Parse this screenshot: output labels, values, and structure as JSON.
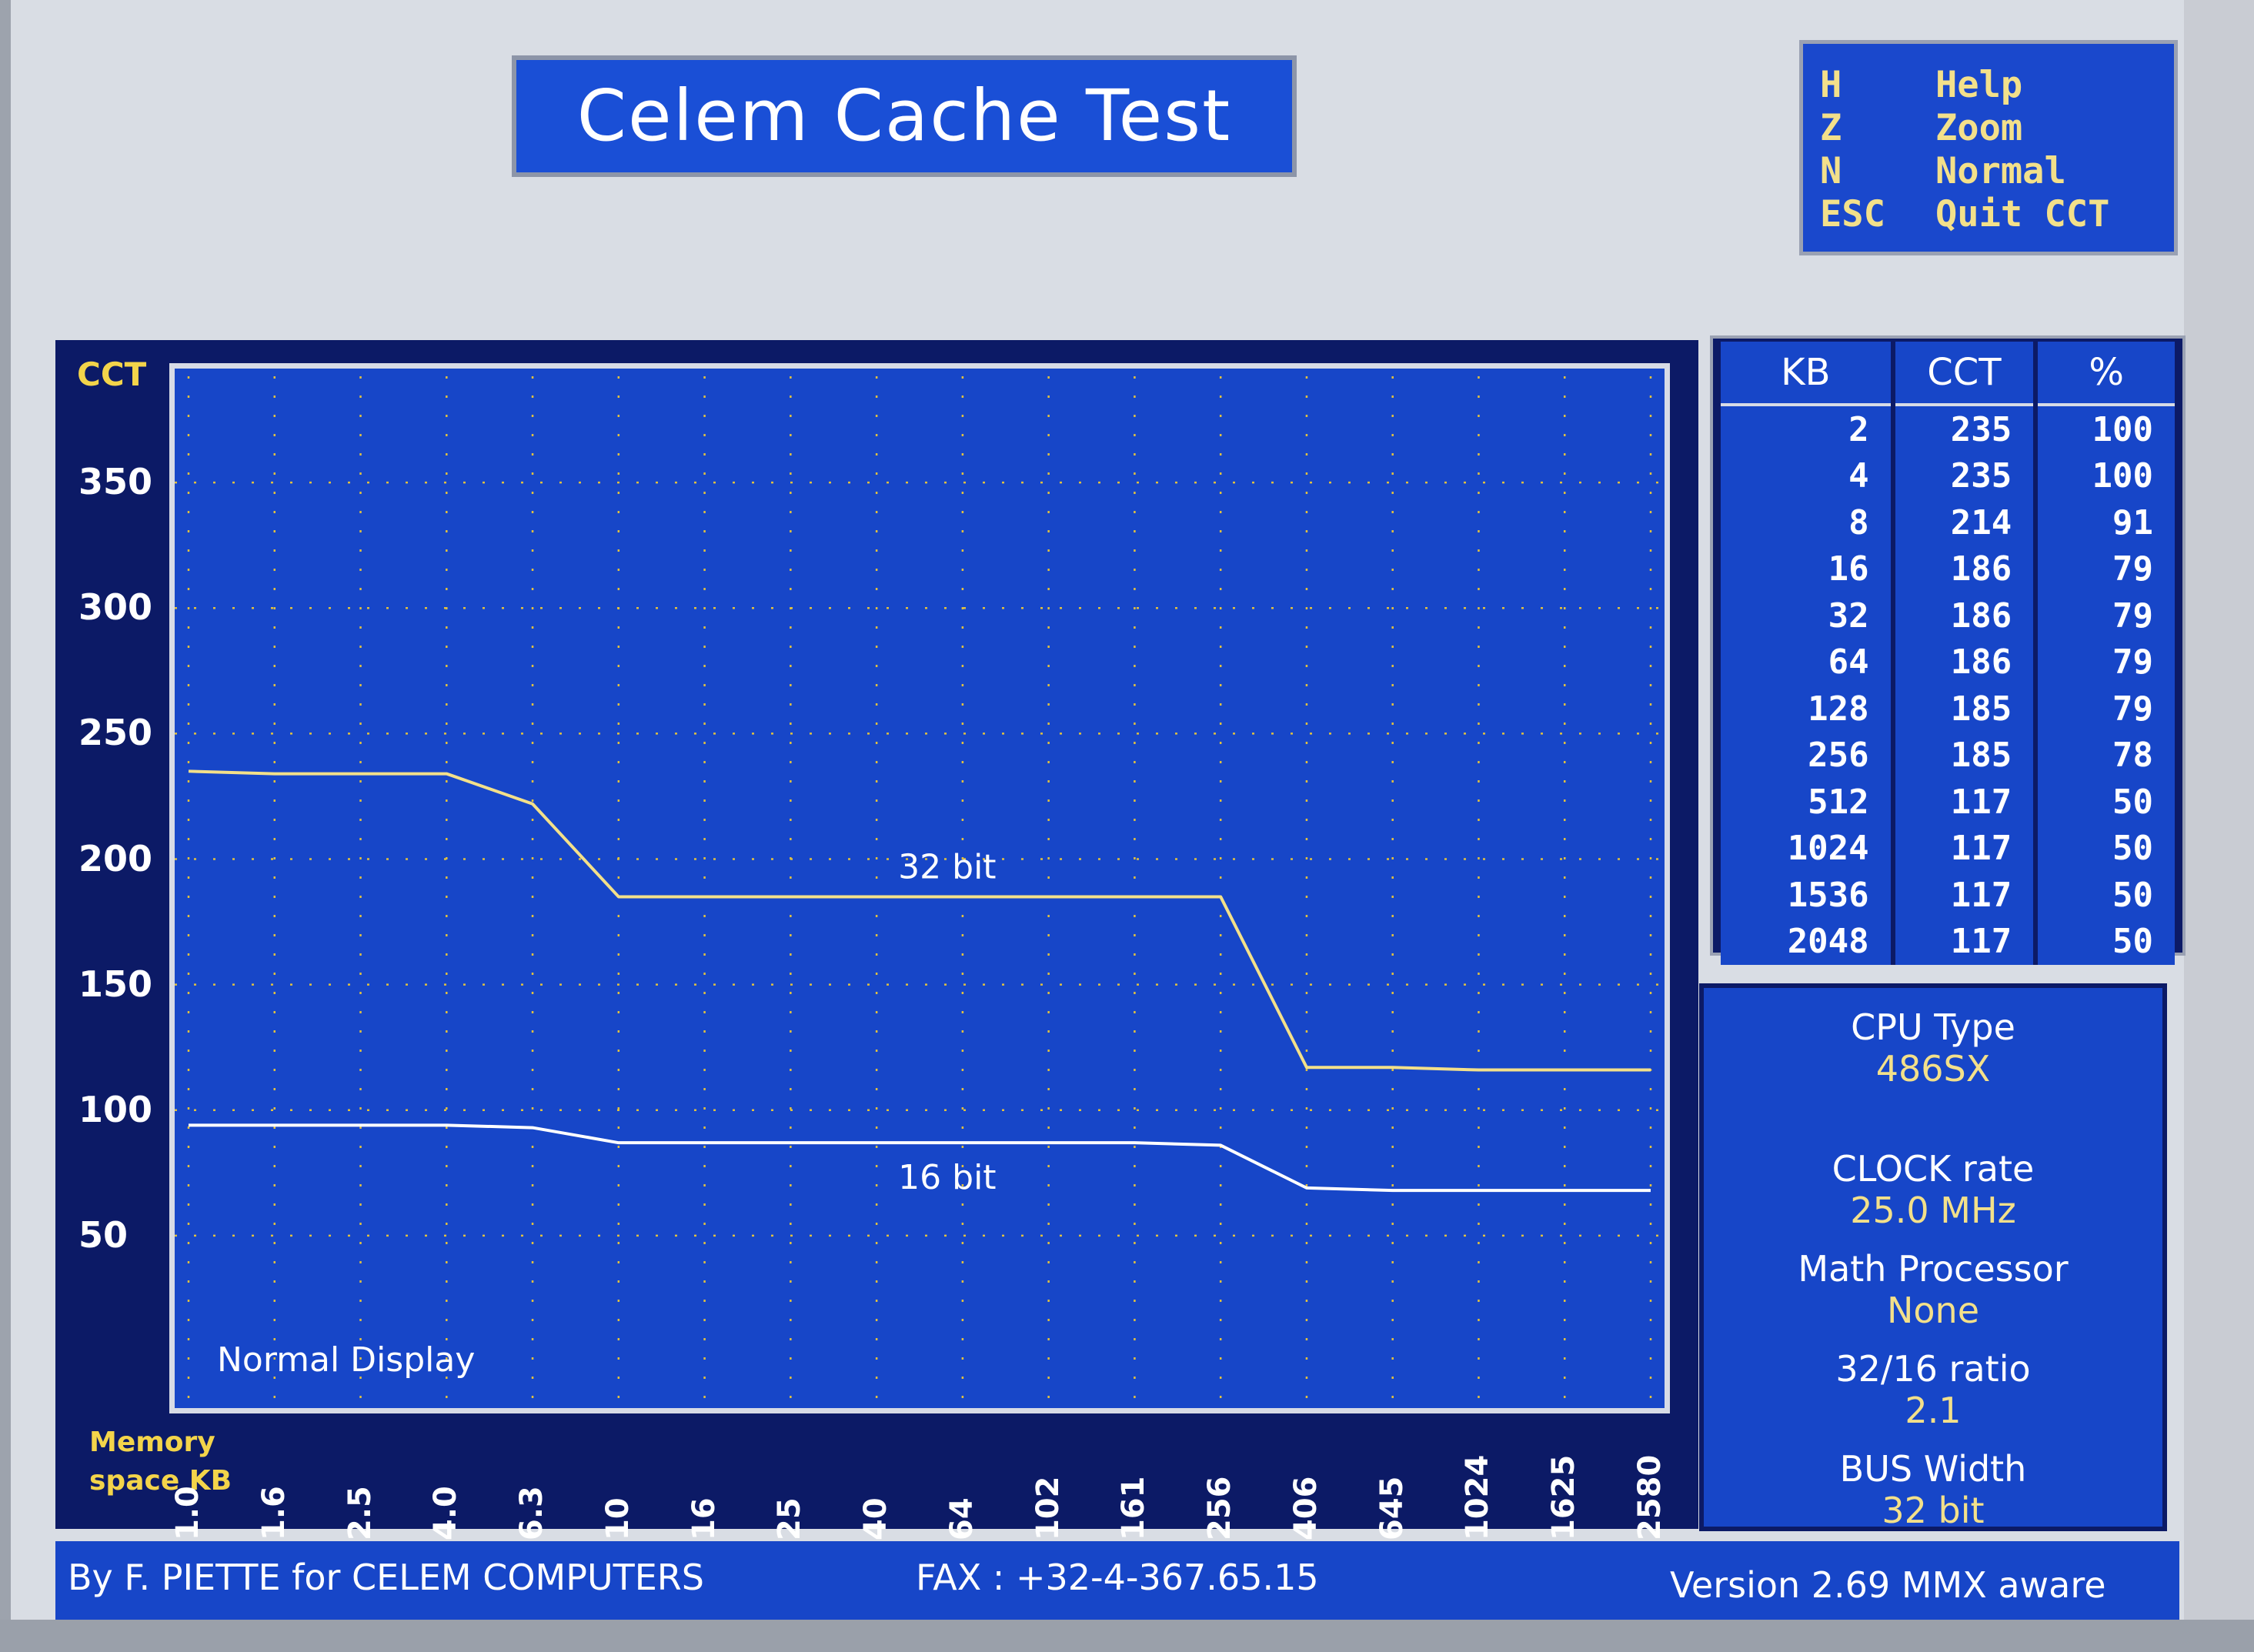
{
  "title": "Celem Cache Test",
  "keys": [
    {
      "key": "H",
      "action": "Help"
    },
    {
      "key": "Z",
      "action": "Zoom"
    },
    {
      "key": "N",
      "action": "Normal"
    },
    {
      "key": "ESC",
      "action": "Quit CCT"
    }
  ],
  "chart_data": {
    "type": "line",
    "ylabel": "CCT",
    "xlabel": "Memory space KB",
    "annotation": "Normal Display",
    "ylim": [
      0,
      400
    ],
    "yticks": [
      "50",
      "100",
      "150",
      "200",
      "250",
      "300",
      "350"
    ],
    "x": [
      "1.0",
      "1.6",
      "2.5",
      "4.0",
      "6.3",
      "10",
      "16",
      "25",
      "40",
      "64",
      "102",
      "161",
      "256",
      "406",
      "645",
      "1024",
      "1625",
      "2580"
    ],
    "grid": true,
    "series": [
      {
        "name": "32 bit",
        "values": [
          235,
          234,
          234,
          234,
          222,
          185,
          185,
          185,
          185,
          185,
          185,
          185,
          185,
          117,
          117,
          116,
          116,
          116
        ]
      },
      {
        "name": "16 bit",
        "values": [
          94,
          94,
          94,
          94,
          93,
          87,
          87,
          87,
          87,
          87,
          87,
          87,
          86,
          69,
          68,
          68,
          68,
          68
        ]
      }
    ]
  },
  "table": {
    "headers": [
      "KB",
      "CCT",
      "%"
    ],
    "rows": [
      [
        "2",
        "235",
        "100"
      ],
      [
        "4",
        "235",
        "100"
      ],
      [
        "8",
        "214",
        "91"
      ],
      [
        "16",
        "186",
        "79"
      ],
      [
        "32",
        "186",
        "79"
      ],
      [
        "64",
        "186",
        "79"
      ],
      [
        "128",
        "185",
        "79"
      ],
      [
        "256",
        "185",
        "78"
      ],
      [
        "512",
        "117",
        "50"
      ],
      [
        "1024",
        "117",
        "50"
      ],
      [
        "1536",
        "117",
        "50"
      ],
      [
        "2048",
        "117",
        "50"
      ]
    ]
  },
  "info": {
    "cpu_label": "CPU Type",
    "cpu_value": "486SX",
    "clock_label": "CLOCK rate",
    "clock_value": "25.0 MHz",
    "math_label": "Math Processor",
    "math_value": "None",
    "ratio_label": "32/16 ratio",
    "ratio_value": "2.1",
    "bus_label": "BUS Width",
    "bus_value": "32 bit"
  },
  "footer": {
    "author": "By F. PIETTE for CELEM COMPUTERS",
    "fax": "FAX : +32-4-367.65.15",
    "version": "Version 2.69 MMX aware"
  },
  "colors": {
    "background": "#1746c8",
    "dark_panel": "#0c1a66",
    "line_32": "#f3e08a",
    "line_16": "#ffffff",
    "grid": "#e0c040"
  }
}
